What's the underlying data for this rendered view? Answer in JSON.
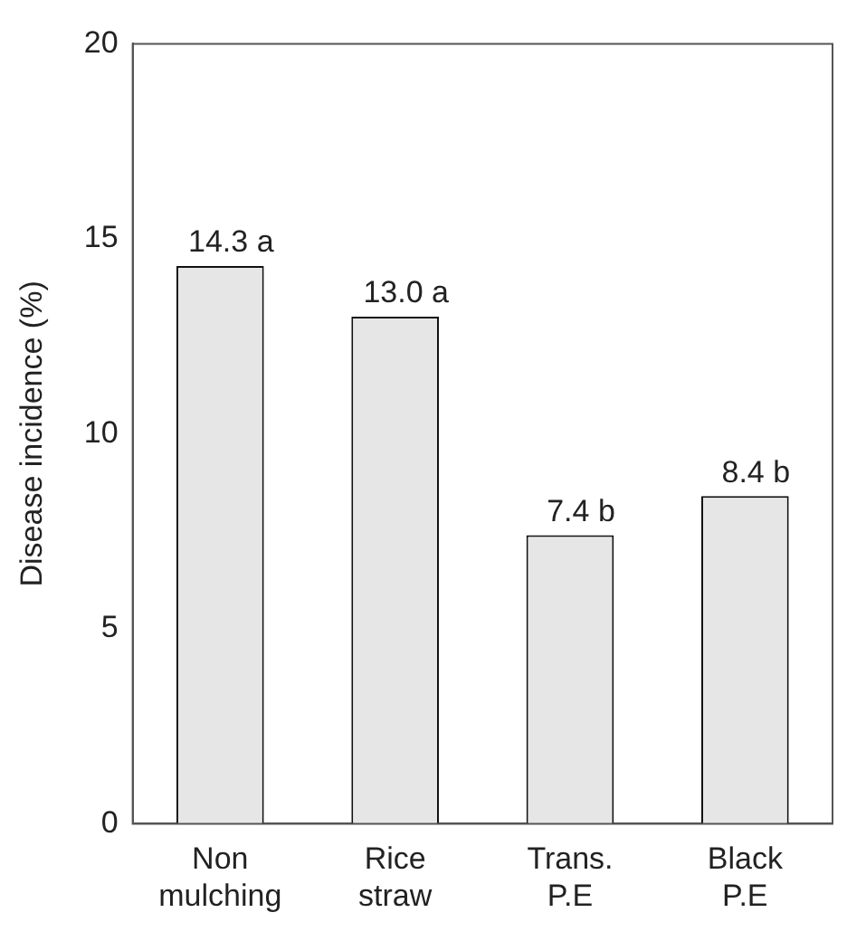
{
  "chart_data": {
    "type": "bar",
    "ylabel": "Disease incidence (%)",
    "categories": [
      "Non mulching",
      "Rice straw",
      "Trans. P.E",
      "Black P.E"
    ],
    "values": [
      14.3,
      13.0,
      7.4,
      8.4
    ],
    "value_labels": [
      "14.3 a",
      "13.0 a",
      "7.4 b",
      "8.4 b"
    ],
    "color": "#e6e6e6",
    "ylim": [
      0,
      20
    ],
    "yticks": [
      0,
      5,
      10,
      15,
      20
    ],
    "grid": false,
    "legend": false
  }
}
